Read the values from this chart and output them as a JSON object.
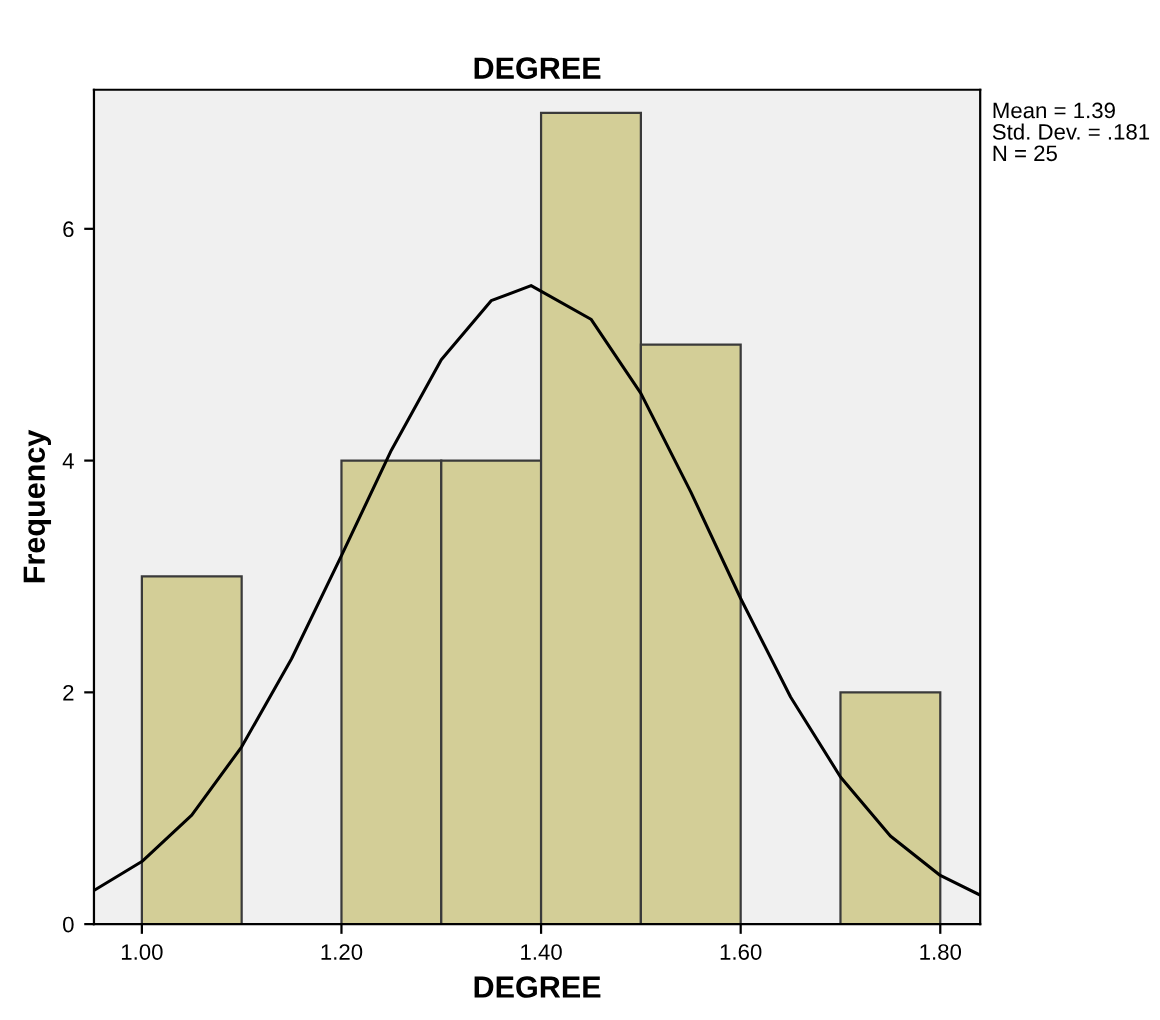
{
  "chart_data": {
    "type": "histogram",
    "title": "DEGREE",
    "xlabel": "DEGREE",
    "ylabel": "Frequency",
    "bins": [
      1.0,
      1.1,
      1.2,
      1.3,
      1.4,
      1.5,
      1.6,
      1.7,
      1.8
    ],
    "values": [
      3,
      0,
      4,
      4,
      7,
      5,
      0,
      2
    ],
    "color": "#d3ce97",
    "series": [
      {
        "type": "line",
        "color": "#000000",
        "x": [
          0.952,
          1.0,
          1.05,
          1.1,
          1.15,
          1.2,
          1.25,
          1.3,
          1.35,
          1.39,
          1.45,
          1.5,
          1.55,
          1.6,
          1.65,
          1.7,
          1.75,
          1.8,
          1.84
        ],
        "values": [
          0.29,
          0.54,
          0.94,
          1.53,
          2.29,
          3.18,
          4.09,
          4.87,
          5.38,
          5.51,
          5.22,
          4.58,
          3.73,
          2.81,
          1.96,
          1.27,
          0.76,
          0.42,
          0.25
        ]
      }
    ],
    "xlim": [
      0.952,
      1.84
    ],
    "ylim": [
      0,
      7.2
    ],
    "xticks": [
      {
        "value": 1.0,
        "label": "1.00"
      },
      {
        "value": 1.2,
        "label": "1.20"
      },
      {
        "value": 1.4,
        "label": "1.40"
      },
      {
        "value": 1.6,
        "label": "1.60"
      },
      {
        "value": 1.8,
        "label": "1.80"
      }
    ],
    "yticks": [
      0,
      2,
      4,
      6
    ],
    "grid": false,
    "legend": false,
    "annotations": [
      "Mean = 1.39",
      "Std. Dev. = .181",
      "N = 25"
    ]
  }
}
